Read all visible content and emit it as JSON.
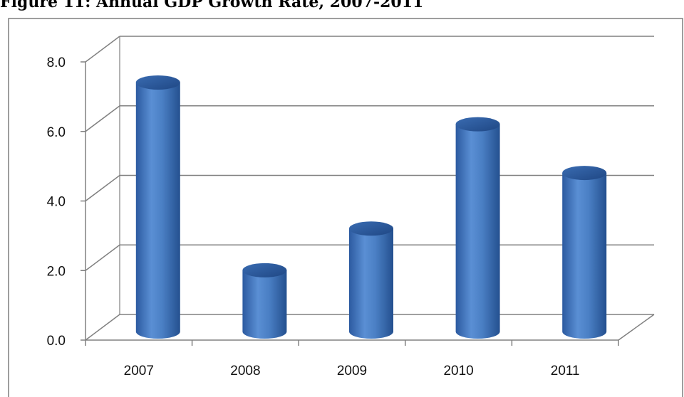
{
  "figure_title": "Figure 11: Annual GDP Growth Rate, 2007-2011",
  "colors": {
    "bar": "#4a7fc4",
    "bar_dark": "#2a5296",
    "grid": "#808080",
    "frame": "#7f7f7f"
  },
  "chart_data": {
    "type": "bar",
    "title": "",
    "xlabel": "",
    "ylabel": "",
    "categories": [
      "2007",
      "2008",
      "2009",
      "2010",
      "2011"
    ],
    "values": [
      7.1,
      1.7,
      2.9,
      5.9,
      4.5
    ],
    "ylim": [
      0,
      8
    ],
    "yticks": [
      "0.0",
      "2.0",
      "4.0",
      "6.0",
      "8.0"
    ],
    "grid": true,
    "legend": "none",
    "style": "3d-cylinder"
  }
}
